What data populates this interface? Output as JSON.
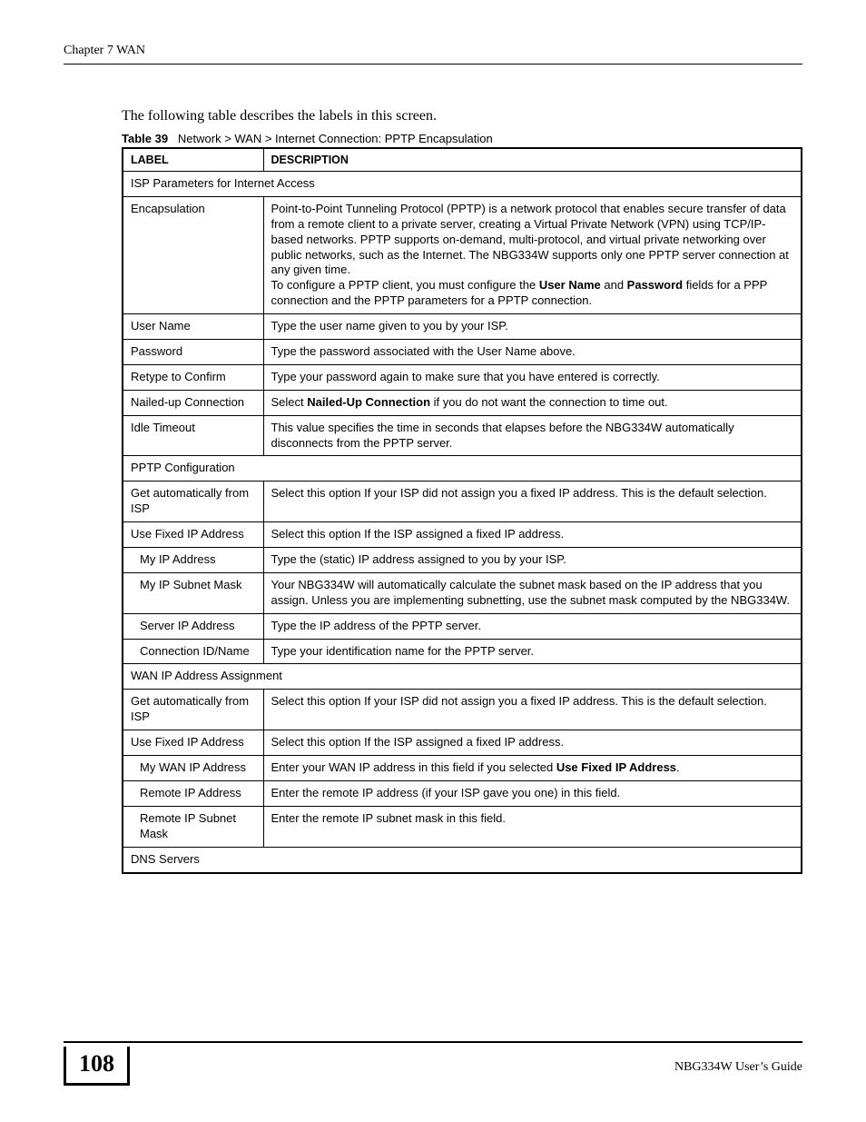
{
  "header": {
    "chapter": "Chapter 7 WAN"
  },
  "intro": "The following table describes the labels in this screen.",
  "caption": {
    "number": "Table 39",
    "title": "Network > WAN > Internet Connection: PPTP Encapsulation"
  },
  "columns": {
    "label": "LABEL",
    "description": "DESCRIPTION"
  },
  "rows": [
    {
      "section": true,
      "label": "ISP Parameters for Internet Access"
    },
    {
      "label": "Encapsulation",
      "description_html": "Point-to-Point Tunneling Protocol (PPTP) is a network protocol that enables secure transfer of data from a remote client to a private server, creating a Virtual Private Network (VPN) using TCP/IP-based networks. PPTP supports on-demand, multi-protocol, and virtual private networking over public networks, such as the Internet. The NBG334W supports only one PPTP server connection at any given time.<br>To configure a PPTP client, you must configure the <b>User Name</b> and <b>Password</b> fields for a PPP connection and the PPTP parameters for a PPTP connection."
    },
    {
      "label": "User Name",
      "description_html": "Type the user name given to you by your ISP."
    },
    {
      "label": "Password",
      "description_html": "Type the password associated with the User Name above."
    },
    {
      "label": "Retype to Confirm",
      "description_html": "Type your password again to make sure that you have entered is correctly."
    },
    {
      "label": "Nailed-up Connection",
      "description_html": "Select <b>Nailed-Up Connection</b> if you do not want the connection to time out."
    },
    {
      "label": "Idle Timeout",
      "description_html": "This value specifies the time in seconds that elapses before the NBG334W automatically disconnects from the PPTP server."
    },
    {
      "section": true,
      "label": "PPTP Configuration"
    },
    {
      "label": "Get automatically from ISP",
      "description_html": "Select this option If your ISP did not assign you a fixed IP address. This is the default selection."
    },
    {
      "label": "Use Fixed IP Address",
      "description_html": "Select this option If the ISP assigned a fixed IP address."
    },
    {
      "label": "My IP Address",
      "indent": 1,
      "description_html": "Type the (static) IP address assigned to you by your ISP."
    },
    {
      "label": "My IP Subnet Mask",
      "indent": 1,
      "description_html": "Your NBG334W will automatically calculate the subnet mask based on the IP address that you assign. Unless you are implementing subnetting, use the subnet mask computed by the NBG334W."
    },
    {
      "label": "Server IP Address",
      "indent": 1,
      "description_html": "Type the IP address of the PPTP server."
    },
    {
      "label": "Connection ID/Name",
      "indent": 1,
      "description_html": "Type your identification name for the PPTP server."
    },
    {
      "section": true,
      "label": "WAN IP Address Assignment"
    },
    {
      "label": "Get automatically from ISP",
      "description_html": "Select this option If your ISP did not assign you a fixed IP address. This is the default selection."
    },
    {
      "label": "Use Fixed IP Address",
      "description_html": "Select this option If the ISP assigned a fixed IP address."
    },
    {
      "label": "My WAN IP Address",
      "indent": 1,
      "description_html": "Enter your WAN IP address in this field if you selected <b>Use Fixed IP Address</b>."
    },
    {
      "label": "Remote IP Address",
      "indent": 1,
      "description_html": "Enter the remote IP address (if your ISP gave you one) in this field."
    },
    {
      "label": "Remote IP Subnet Mask",
      "indent": 1,
      "description_html": "Enter the remote IP subnet mask in this field."
    },
    {
      "section": true,
      "label": "DNS Servers"
    }
  ],
  "footer": {
    "page_number": "108",
    "guide": "NBG334W User’s Guide"
  }
}
